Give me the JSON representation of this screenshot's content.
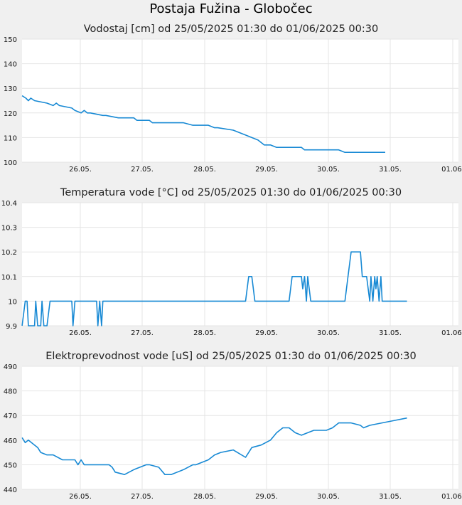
{
  "page_title": "Postaja Fužina - Globočec",
  "colors": {
    "line": "#1789d4",
    "grid": "#e4e4e4",
    "plot_bg": "#ffffff",
    "page_bg": "#f0f0f0"
  },
  "chart_data": [
    {
      "type": "line",
      "title": "Vodostaj [cm] od 25/05/2025 01:30 do 01/06/2025 00:30",
      "xlabel": "",
      "ylabel": "",
      "x_ticks": [
        "26.05.",
        "27.05.",
        "28.05.",
        "29.05.",
        "30.05.",
        "31.05.",
        "01.06."
      ],
      "y_ticks": [
        "100",
        "110",
        "120",
        "130",
        "140",
        "150"
      ],
      "ylim": [
        100,
        150
      ],
      "xlim": [
        0,
        7.05
      ],
      "grid": true,
      "series": [
        {
          "x": [
            0.0,
            0.06,
            0.1,
            0.14,
            0.2,
            0.4,
            0.5,
            0.55,
            0.6,
            0.8,
            0.85,
            0.95,
            1.0,
            1.05,
            1.1,
            1.3,
            1.35,
            1.55,
            1.6,
            1.8,
            1.85,
            2.05,
            2.1,
            2.35,
            2.4,
            2.6,
            2.75,
            2.8,
            3.0,
            3.1,
            3.15,
            3.4,
            3.6,
            3.8,
            3.9,
            4.0,
            4.1,
            4.5,
            4.55,
            5.0,
            5.05,
            5.1,
            5.2,
            5.5,
            5.6,
            5.8,
            5.85
          ],
          "y": [
            127,
            126,
            125,
            126,
            125,
            124,
            123,
            124,
            123,
            122,
            121,
            120,
            121,
            120,
            120,
            119,
            119,
            118,
            118,
            118,
            117,
            117,
            116,
            116,
            116,
            116,
            115,
            115,
            115,
            114,
            114,
            113,
            111,
            109,
            107,
            107,
            106,
            106,
            105,
            105,
            105,
            105,
            104,
            104,
            104,
            104,
            104
          ]
        }
      ]
    },
    {
      "type": "line",
      "title": "Temperatura vode [°C] od 25/05/2025 01:30 do 01/06/2025 00:30",
      "xlabel": "",
      "ylabel": "",
      "x_ticks": [
        "26.05.",
        "27.05.",
        "28.05.",
        "29.05.",
        "30.05.",
        "31.05.",
        "01.06."
      ],
      "y_ticks": [
        "9.9",
        "10",
        "10.1",
        "10.2",
        "10.3",
        "10.4"
      ],
      "ylim": [
        9.9,
        10.4
      ],
      "xlim": [
        0,
        7.05
      ],
      "grid": true,
      "series": [
        {
          "x": [
            0.0,
            0.05,
            0.08,
            0.1,
            0.12,
            0.15,
            0.2,
            0.22,
            0.25,
            0.3,
            0.32,
            0.35,
            0.4,
            0.45,
            0.5,
            0.8,
            0.82,
            0.85,
            0.9,
            1.2,
            1.22,
            1.25,
            1.28,
            1.3,
            1.35,
            3.6,
            3.65,
            3.7,
            3.75,
            3.78,
            3.82,
            4.3,
            4.35,
            4.4,
            4.5,
            4.52,
            4.55,
            4.58,
            4.6,
            4.65,
            5.2,
            5.25,
            5.3,
            5.45,
            5.48,
            5.55,
            5.6,
            5.62,
            5.65,
            5.68,
            5.7,
            5.72,
            5.75,
            5.78,
            5.8,
            5.82,
            5.85,
            6.2
          ],
          "y": [
            9.9,
            10.0,
            10.0,
            9.9,
            9.9,
            9.9,
            9.9,
            10.0,
            9.9,
            9.9,
            10.0,
            9.9,
            9.9,
            10.0,
            10.0,
            10.0,
            9.9,
            10.0,
            10.0,
            10.0,
            9.9,
            10.0,
            9.9,
            10.0,
            10.0,
            10.0,
            10.1,
            10.1,
            10.0,
            10.0,
            10.0,
            10.0,
            10.1,
            10.1,
            10.1,
            10.05,
            10.1,
            10.0,
            10.1,
            10.0,
            10.0,
            10.1,
            10.2,
            10.2,
            10.1,
            10.1,
            10.0,
            10.1,
            10.0,
            10.1,
            10.05,
            10.1,
            10.0,
            10.1,
            10.0,
            10.0,
            10.0,
            10.0
          ]
        }
      ]
    },
    {
      "type": "line",
      "title": "Elektroprevodnost vode [uS] od 25/05/2025 01:30 do 01/06/2025 00:30",
      "xlabel": "",
      "ylabel": "",
      "x_ticks": [
        "26.05.",
        "27.05.",
        "28.05.",
        "29.05.",
        "30.05.",
        "31.05.",
        "01.06."
      ],
      "y_ticks": [
        "440",
        "450",
        "460",
        "470",
        "480",
        "490"
      ],
      "ylim": [
        440,
        490
      ],
      "xlim": [
        0,
        7.05
      ],
      "grid": true,
      "series": [
        {
          "x": [
            0.0,
            0.05,
            0.1,
            0.15,
            0.2,
            0.25,
            0.3,
            0.4,
            0.5,
            0.65,
            0.85,
            0.9,
            0.95,
            1.0,
            1.1,
            1.4,
            1.45,
            1.5,
            1.65,
            1.8,
            2.0,
            2.05,
            2.2,
            2.3,
            2.4,
            2.6,
            2.75,
            2.8,
            3.0,
            3.1,
            3.2,
            3.4,
            3.6,
            3.7,
            3.85,
            4.0,
            4.1,
            4.2,
            4.3,
            4.4,
            4.5,
            4.6,
            4.7,
            4.9,
            5.0,
            5.1,
            5.2,
            5.3,
            5.45,
            5.5,
            5.6,
            6.0,
            6.2
          ],
          "y": [
            461,
            459,
            460,
            459,
            458,
            457,
            455,
            454,
            454,
            452,
            452,
            450,
            452,
            450,
            450,
            450,
            449,
            447,
            446,
            448,
            450,
            450,
            449,
            446,
            446,
            448,
            450,
            450,
            452,
            454,
            455,
            456,
            453,
            457,
            458,
            460,
            463,
            465,
            465,
            463,
            462,
            463,
            464,
            464,
            465,
            467,
            467,
            467,
            466,
            465,
            466,
            468,
            469
          ]
        }
      ]
    }
  ]
}
